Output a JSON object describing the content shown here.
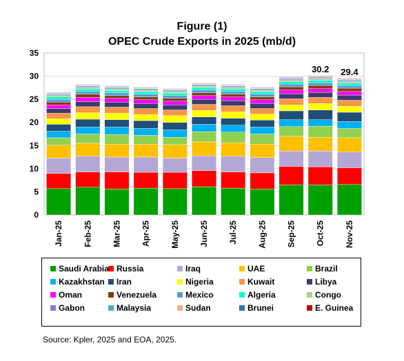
{
  "chart_data": {
    "type": "bar",
    "stacked": true,
    "title": "Figure (1)",
    "subtitle": "OPEC Crude Exports in 2025 (mb/d)",
    "xlabel": "",
    "ylabel": "",
    "ylim": [
      0,
      35
    ],
    "yticks": [
      "0",
      "5",
      "10",
      "15",
      "20",
      "25",
      "30",
      "35"
    ],
    "grid": true,
    "legend_position": "bottom",
    "categories": [
      "Jan-25",
      "Feb-25",
      "Mar-25",
      "Apr-25",
      "May-25",
      "Jun-25",
      "Jul-25",
      "Aug-25",
      "Sep-25",
      "Oct-25",
      "Nov-25"
    ],
    "total_labels": [
      null,
      null,
      null,
      null,
      null,
      null,
      null,
      null,
      null,
      "30.2",
      "29.4"
    ],
    "series": [
      {
        "name": "Saudi Arabia",
        "color": "#00A000",
        "values": [
          5.7,
          6.0,
          5.6,
          5.8,
          5.7,
          6.1,
          5.8,
          5.6,
          6.5,
          6.5,
          6.6
        ]
      },
      {
        "name": "Russia",
        "color": "#FF0000",
        "values": [
          3.3,
          3.3,
          3.7,
          3.4,
          3.5,
          3.5,
          3.5,
          3.5,
          4.0,
          3.9,
          3.6
        ]
      },
      {
        "name": "Iraq",
        "color": "#B4A7D6",
        "values": [
          3.3,
          3.4,
          3.2,
          3.3,
          3.1,
          3.2,
          3.4,
          3.3,
          3.3,
          3.4,
          3.4
        ]
      },
      {
        "name": "UAE",
        "color": "#FFC000",
        "values": [
          2.8,
          2.8,
          2.8,
          2.8,
          2.9,
          3.0,
          2.9,
          2.9,
          3.2,
          3.0,
          3.1
        ]
      },
      {
        "name": "Brazil",
        "color": "#92D050",
        "values": [
          1.6,
          2.0,
          2.1,
          1.9,
          1.6,
          2.2,
          2.3,
          2.2,
          2.1,
          2.4,
          2.0
        ]
      },
      {
        "name": "Kazakhstan",
        "color": "#00B0F0",
        "values": [
          1.4,
          1.5,
          1.6,
          1.5,
          1.6,
          1.6,
          1.5,
          1.5,
          1.5,
          1.4,
          1.5
        ]
      },
      {
        "name": "Iran",
        "color": "#1F4E79",
        "values": [
          1.5,
          1.7,
          1.6,
          1.7,
          1.6,
          1.6,
          1.5,
          1.5,
          1.9,
          2.1,
          2.0
        ]
      },
      {
        "name": "Nigeria",
        "color": "#FFFF00",
        "values": [
          1.2,
          1.4,
          1.4,
          1.3,
          1.5,
          1.4,
          1.4,
          1.3,
          1.3,
          1.4,
          1.3
        ]
      },
      {
        "name": "Kuwait",
        "color": "#F79646",
        "values": [
          1.2,
          1.3,
          1.3,
          1.3,
          1.2,
          1.3,
          1.3,
          1.2,
          1.3,
          1.3,
          1.3
        ]
      },
      {
        "name": "Libya",
        "color": "#3B3B6D",
        "values": [
          1.0,
          1.1,
          1.1,
          1.1,
          1.1,
          1.1,
          1.1,
          1.1,
          1.1,
          1.1,
          1.1
        ]
      },
      {
        "name": "Oman",
        "color": "#FF00FF",
        "values": [
          0.8,
          0.9,
          0.8,
          0.8,
          0.8,
          0.8,
          0.8,
          0.8,
          0.8,
          0.8,
          0.8
        ]
      },
      {
        "name": "Venezuela",
        "color": "#843C0C",
        "values": [
          0.6,
          0.7,
          0.6,
          0.6,
          0.6,
          0.6,
          0.6,
          0.6,
          0.7,
          0.7,
          0.7
        ]
      },
      {
        "name": "Mexico",
        "color": "#5B9BD5",
        "values": [
          0.6,
          0.6,
          0.6,
          0.6,
          0.6,
          0.6,
          0.6,
          0.6,
          0.6,
          0.6,
          0.6
        ]
      },
      {
        "name": "Algeria",
        "color": "#00FFCC",
        "values": [
          0.5,
          0.5,
          0.5,
          0.5,
          0.5,
          0.5,
          0.5,
          0.5,
          0.5,
          0.5,
          0.5
        ]
      },
      {
        "name": "Congo",
        "color": "#A9D18E",
        "values": [
          0.3,
          0.3,
          0.3,
          0.3,
          0.3,
          0.3,
          0.3,
          0.3,
          0.3,
          0.3,
          0.3
        ]
      },
      {
        "name": "Gabon",
        "color": "#8E7CC3",
        "values": [
          0.2,
          0.2,
          0.2,
          0.2,
          0.2,
          0.2,
          0.2,
          0.2,
          0.2,
          0.2,
          0.2
        ]
      },
      {
        "name": "Malaysia",
        "color": "#4BACC6",
        "values": [
          0.2,
          0.2,
          0.2,
          0.2,
          0.2,
          0.2,
          0.2,
          0.2,
          0.2,
          0.2,
          0.2
        ]
      },
      {
        "name": "Sudan",
        "color": "#F4B183",
        "values": [
          0.1,
          0.1,
          0.1,
          0.1,
          0.1,
          0.1,
          0.1,
          0.1,
          0.1,
          0.1,
          0.1
        ]
      },
      {
        "name": "Brunei",
        "color": "#2E75B6",
        "values": [
          0.1,
          0.1,
          0.1,
          0.1,
          0.1,
          0.1,
          0.1,
          0.1,
          0.1,
          0.1,
          0.1
        ]
      },
      {
        "name": "E. Guinea",
        "color": "#C00000",
        "values": [
          0.1,
          0.1,
          0.1,
          0.1,
          0.1,
          0.1,
          0.1,
          0.1,
          0.1,
          0.1,
          0.1
        ]
      }
    ]
  },
  "source_note": "Source: Kpler, 2025 and EOA, 2025."
}
